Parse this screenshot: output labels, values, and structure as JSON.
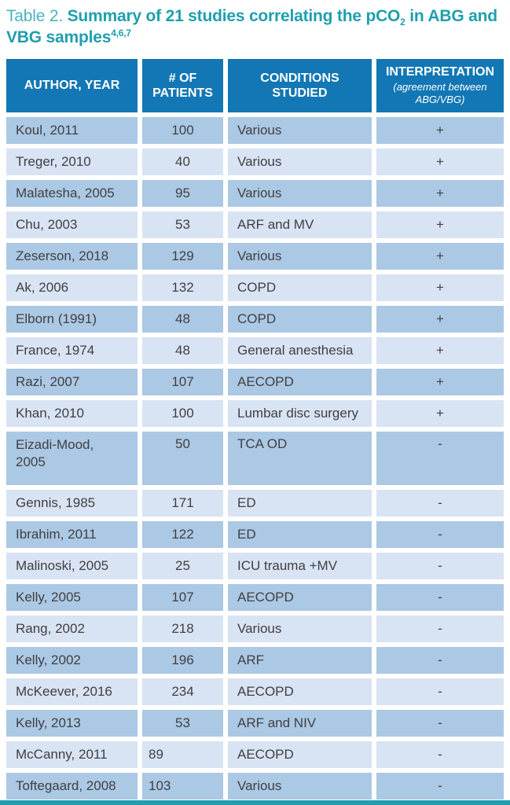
{
  "title": {
    "prefix": "Table 2. ",
    "main_before_sub": "Summary of 21 studies correlating the pCO",
    "subscript": "2",
    "main_after_sub": " in ABG and VBG samples",
    "superscript": "4,6,7"
  },
  "colors": {
    "accent_teal": "#1f9fae",
    "title_prefix_teal": "#4ab3c1",
    "header_blue": "#1277b4",
    "row_dark": "#abc8e4",
    "row_light": "#d8e3f3",
    "cell_text": "#414042"
  },
  "table": {
    "headers": [
      {
        "label": "AUTHOR, YEAR"
      },
      {
        "label": "# OF PATIENTS"
      },
      {
        "label": "CONDITIONS STUDIED"
      },
      {
        "label": "INTERPRETATION",
        "sublabel": "(agreement between ABG/VBG)"
      }
    ],
    "rows": [
      {
        "author": "Koul, 2011",
        "patients": "100",
        "conditions": "Various",
        "interpretation": "+"
      },
      {
        "author": "Treger, 2010",
        "patients": "40",
        "conditions": "Various",
        "interpretation": "+"
      },
      {
        "author": "Malatesha, 2005",
        "patients": "95",
        "conditions": "Various",
        "interpretation": "+"
      },
      {
        "author": "Chu, 2003",
        "patients": "53",
        "conditions": "ARF and MV",
        "interpretation": "+"
      },
      {
        "author": "Zeserson, 2018",
        "patients": "129",
        "conditions": "Various",
        "interpretation": "+"
      },
      {
        "author": "Ak, 2006",
        "patients": "132",
        "conditions": "COPD",
        "interpretation": "+"
      },
      {
        "author": "Elborn (1991)",
        "patients": "48",
        "conditions": "COPD",
        "interpretation": "+"
      },
      {
        "author": "France, 1974",
        "patients": "48",
        "conditions": "General anesthesia",
        "interpretation": "+"
      },
      {
        "author": "Razi, 2007",
        "patients": "107",
        "conditions": "AECOPD",
        "interpretation": "+"
      },
      {
        "author": "Khan, 2010",
        "patients": "100",
        "conditions": "Lumbar disc surgery",
        "interpretation": "+"
      },
      {
        "author": "Eizadi-Mood,\n2005",
        "patients": "50",
        "conditions": "TCA OD",
        "interpretation": "-",
        "tall": true
      },
      {
        "author": "Gennis, 1985",
        "patients": "171",
        "conditions": "ED",
        "interpretation": "-"
      },
      {
        "author": "Ibrahim, 2011",
        "patients": "122",
        "conditions": "ED",
        "interpretation": "-"
      },
      {
        "author": "Malinoski, 2005",
        "patients": "25",
        "conditions": "ICU trauma +MV",
        "interpretation": "-"
      },
      {
        "author": "Kelly, 2005",
        "patients": "107",
        "conditions": "AECOPD",
        "interpretation": "-"
      },
      {
        "author": "Rang, 2002",
        "patients": "218",
        "conditions": "Various",
        "interpretation": "-"
      },
      {
        "author": "Kelly, 2002",
        "patients": "196",
        "conditions": "ARF",
        "interpretation": "-"
      },
      {
        "author": "McKeever, 2016",
        "patients": "234",
        "conditions": "AECOPD",
        "interpretation": "-"
      },
      {
        "author": "Kelly, 2013",
        "patients": "53",
        "conditions": "ARF and NIV",
        "interpretation": "-"
      },
      {
        "author": "McCanny, 2011",
        "patients": "89",
        "conditions": "AECOPD",
        "interpretation": "-",
        "patients_align": "left"
      },
      {
        "author": "Toftegaard, 2008",
        "patients": "103",
        "conditions": "Various",
        "interpretation": "-",
        "patients_align": "left"
      }
    ]
  }
}
